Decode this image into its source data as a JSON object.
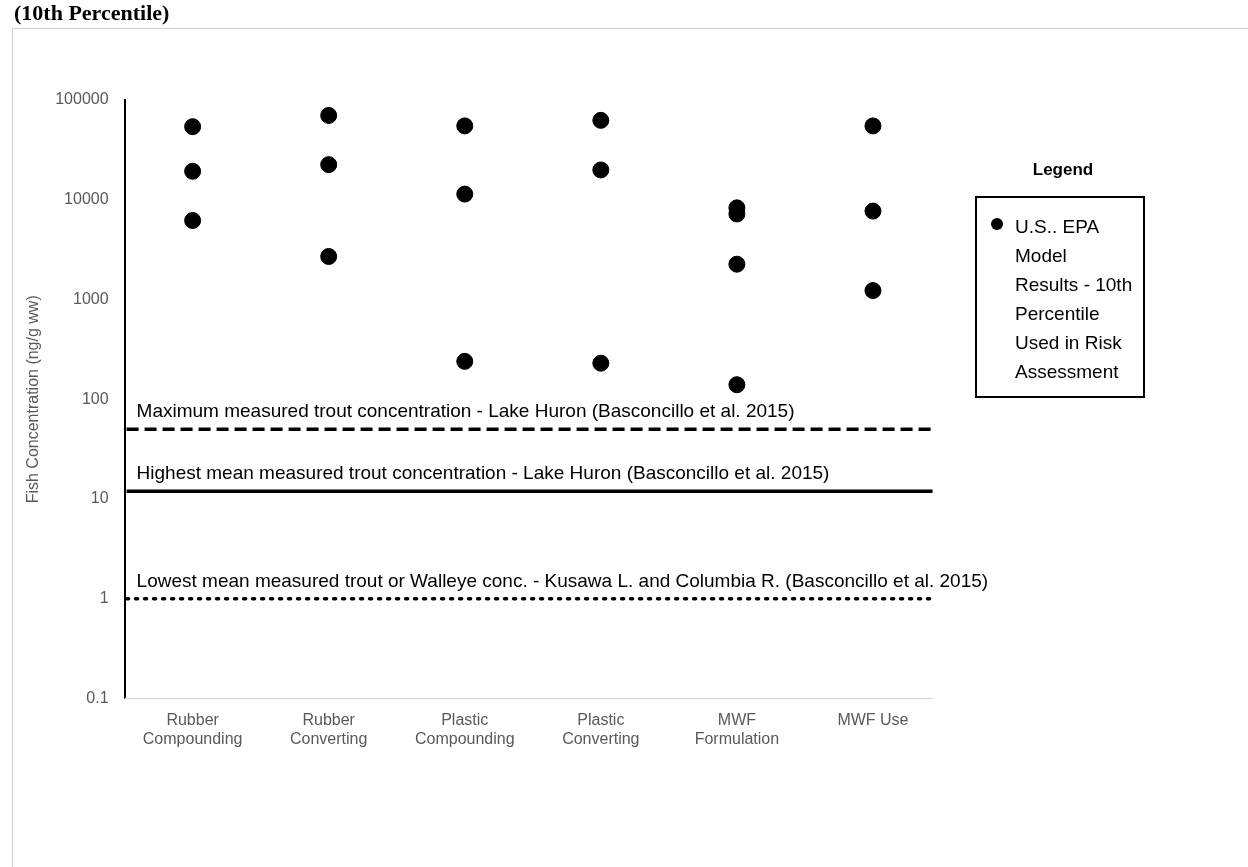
{
  "chart_data": {
    "type": "scatter",
    "title": "(10th Percentile)",
    "ylabel": "Fish Concentration (ng/g ww)",
    "legend_title": "Legend",
    "categories": [
      "Rubber Compounding",
      "Rubber Converting",
      "Plastic Compounding",
      "Plastic Converting",
      "MWF Formulation",
      "MWF Use"
    ],
    "series": [
      {
        "name": "U.S.. EPA Model Results - 10th Percentile Used in Risk Assessment",
        "color": "#000000",
        "x": [
          "Rubber Compounding",
          "Rubber Compounding",
          "Rubber Compounding",
          "Rubber Converting",
          "Rubber Converting",
          "Rubber Converting",
          "Plastic Compounding",
          "Plastic Compounding",
          "Plastic Compounding",
          "Plastic Converting",
          "Plastic Converting",
          "Plastic Converting",
          "MWF Formulation",
          "MWF Formulation",
          "MWF Formulation",
          "MWF Formulation",
          "MWF Use",
          "MWF Use",
          "MWF Use"
        ],
        "values": [
          54000,
          19300,
          6200,
          70000,
          22500,
          2700,
          55000,
          11400,
          240,
          62500,
          19900,
          230,
          8300,
          7200,
          2260,
          140,
          55000,
          7700,
          1230
        ]
      }
    ],
    "log": "y",
    "ylim": [
      0.1,
      100000
    ],
    "yticks": [
      0.1,
      1,
      10,
      100,
      1000,
      10000,
      100000
    ],
    "grid": false,
    "legend": "right",
    "marker": "circle",
    "ref_lines": [
      {
        "axis": "y",
        "value": 50,
        "label": "Maximum measured trout concentration - Lake Huron (Basconcillo et al. 2015)",
        "line_style": "dashed",
        "color": "#000000"
      },
      {
        "axis": "y",
        "value": 12,
        "label": "Highest mean measured trout concentration - Lake Huron (Basconcillo et al. 2015)",
        "line_style": "solid",
        "color": "#000000"
      },
      {
        "axis": "y",
        "value": 1,
        "label": "Lowest mean measured trout or Walleye conc. - Kusawa L. and Columbia R. (Basconcillo et al. 2015)",
        "line_style": "dotted",
        "color": "#000000"
      }
    ]
  }
}
